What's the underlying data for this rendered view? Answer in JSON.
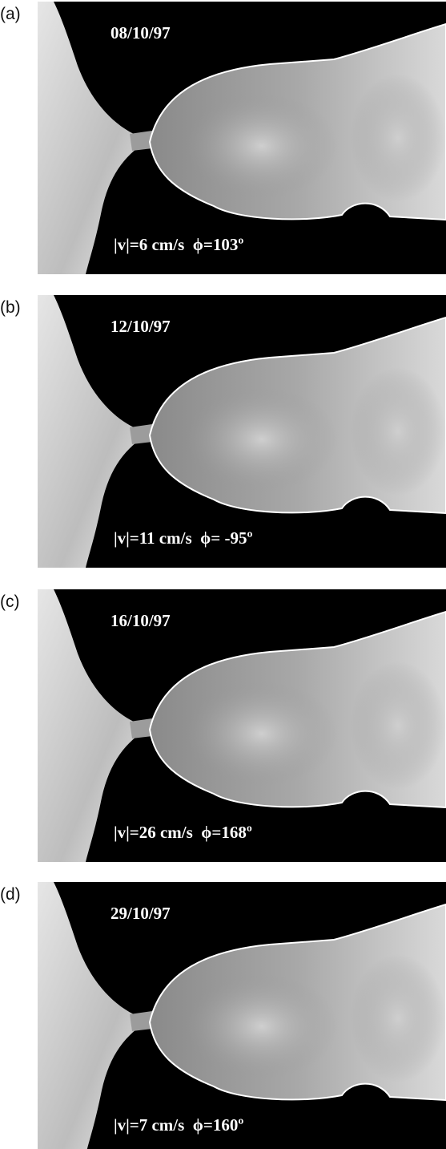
{
  "panels": [
    {
      "label": "(a)",
      "date": "08/10/97",
      "caption": "|v|=6 cm/s  ϕ=103º"
    },
    {
      "label": "(b)",
      "date": "12/10/97",
      "caption": "|v|=11 cm/s  ϕ= -95º"
    },
    {
      "label": "(c)",
      "date": "16/10/97",
      "caption": "|v|=26 cm/s  ϕ=168º"
    },
    {
      "label": "(d)",
      "date": "29/10/97",
      "caption": "|v|=7 cm/s  ϕ=160º"
    }
  ]
}
